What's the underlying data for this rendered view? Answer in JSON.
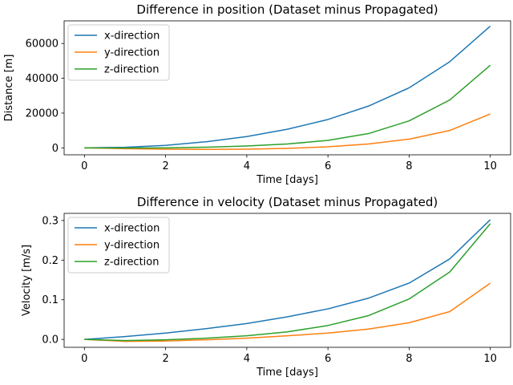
{
  "chart_data": [
    {
      "type": "line",
      "title": "Difference in position (Dataset minus Propagated)",
      "xlabel": "Time [days]",
      "ylabel": "Distance [m]",
      "xlim": [
        -0.5,
        10.5
      ],
      "ylim": [
        -4000,
        73000
      ],
      "xticks": [
        0,
        2,
        4,
        6,
        8,
        10
      ],
      "yticks": [
        0,
        20000,
        40000,
        60000
      ],
      "ytick_labels": [
        "0",
        "20000",
        "40000",
        "60000"
      ],
      "grid": false,
      "legend_position": "upper-left",
      "x": [
        0,
        1,
        2,
        3,
        4,
        5,
        6,
        7,
        8,
        9,
        10
      ],
      "series": [
        {
          "name": "x-direction",
          "color": "#1f77b4",
          "values": [
            0,
            300,
            1400,
            3500,
            6500,
            10700,
            16300,
            24000,
            34500,
            49500,
            70000
          ]
        },
        {
          "name": "y-direction",
          "color": "#ff7f0e",
          "values": [
            0,
            -500,
            -800,
            -900,
            -800,
            -300,
            600,
            2200,
            5000,
            10000,
            19500
          ]
        },
        {
          "name": "z-direction",
          "color": "#2ca02c",
          "values": [
            0,
            -100,
            0,
            400,
            1100,
            2200,
            4300,
            8200,
            15500,
            27500,
            47500
          ]
        }
      ]
    },
    {
      "type": "line",
      "title": "Difference in velocity (Dataset minus Propagated)",
      "xlabel": "Time [days]",
      "ylabel": "Velocity [m/s]",
      "xlim": [
        -0.5,
        10.5
      ],
      "ylim": [
        -0.02,
        0.318
      ],
      "xticks": [
        0,
        2,
        4,
        6,
        8,
        10
      ],
      "yticks": [
        0.0,
        0.1,
        0.2,
        0.3
      ],
      "ytick_labels": [
        "0.0",
        "0.1",
        "0.2",
        "0.3"
      ],
      "grid": false,
      "legend_position": "upper-left",
      "x": [
        0,
        1,
        2,
        3,
        4,
        5,
        6,
        7,
        8,
        9,
        10
      ],
      "series": [
        {
          "name": "x-direction",
          "color": "#1f77b4",
          "values": [
            0,
            0.007,
            0.016,
            0.027,
            0.04,
            0.057,
            0.077,
            0.104,
            0.142,
            0.203,
            0.302
          ]
        },
        {
          "name": "y-direction",
          "color": "#ff7f0e",
          "values": [
            0,
            -0.005,
            -0.004,
            -0.001,
            0.003,
            0.009,
            0.016,
            0.026,
            0.042,
            0.07,
            0.142
          ]
        },
        {
          "name": "z-direction",
          "color": "#2ca02c",
          "values": [
            0,
            -0.003,
            -0.001,
            0.003,
            0.009,
            0.019,
            0.035,
            0.06,
            0.102,
            0.17,
            0.292
          ]
        }
      ]
    }
  ]
}
